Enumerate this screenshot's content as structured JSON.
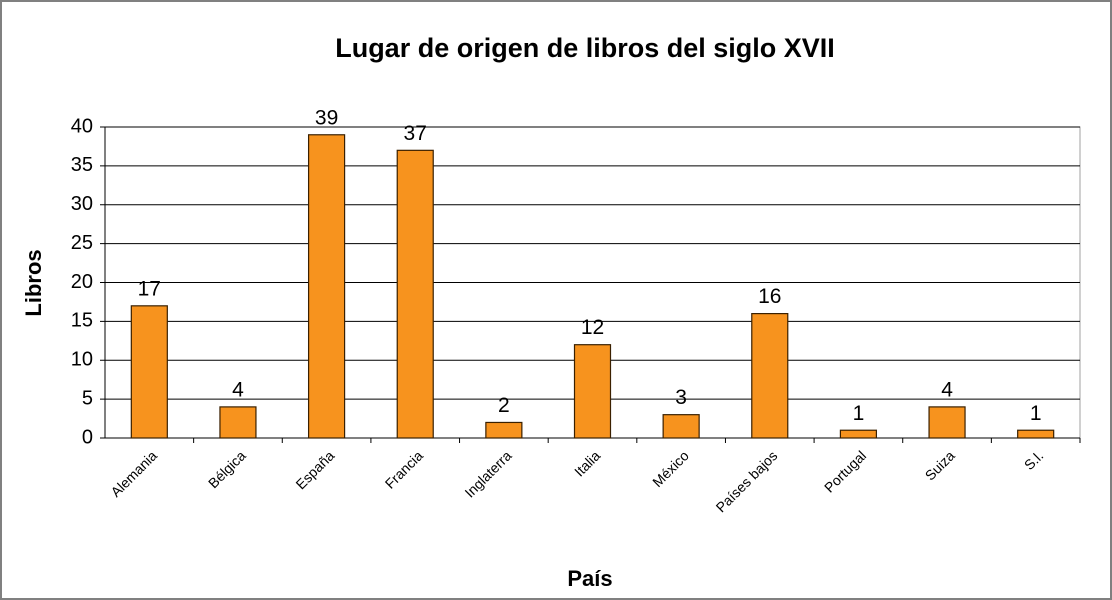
{
  "chart_data": {
    "type": "bar",
    "title": "Lugar de origen de libros del siglo XVII",
    "x_label": "País",
    "y_label": "Libros",
    "categories": [
      "Alemania",
      "Bélgica",
      "España",
      "Francia",
      "Inglaterra",
      "Italia",
      "México",
      "Países bajos",
      "Portugal",
      "Suiza",
      "S.l."
    ],
    "values": [
      17,
      4,
      39,
      37,
      2,
      12,
      3,
      16,
      1,
      4,
      1
    ],
    "color": "#f7931e",
    "ylim": [
      0,
      40
    ],
    "yticks": [
      0,
      5,
      10,
      15,
      20,
      25,
      30,
      35,
      40
    ],
    "grid": true
  }
}
